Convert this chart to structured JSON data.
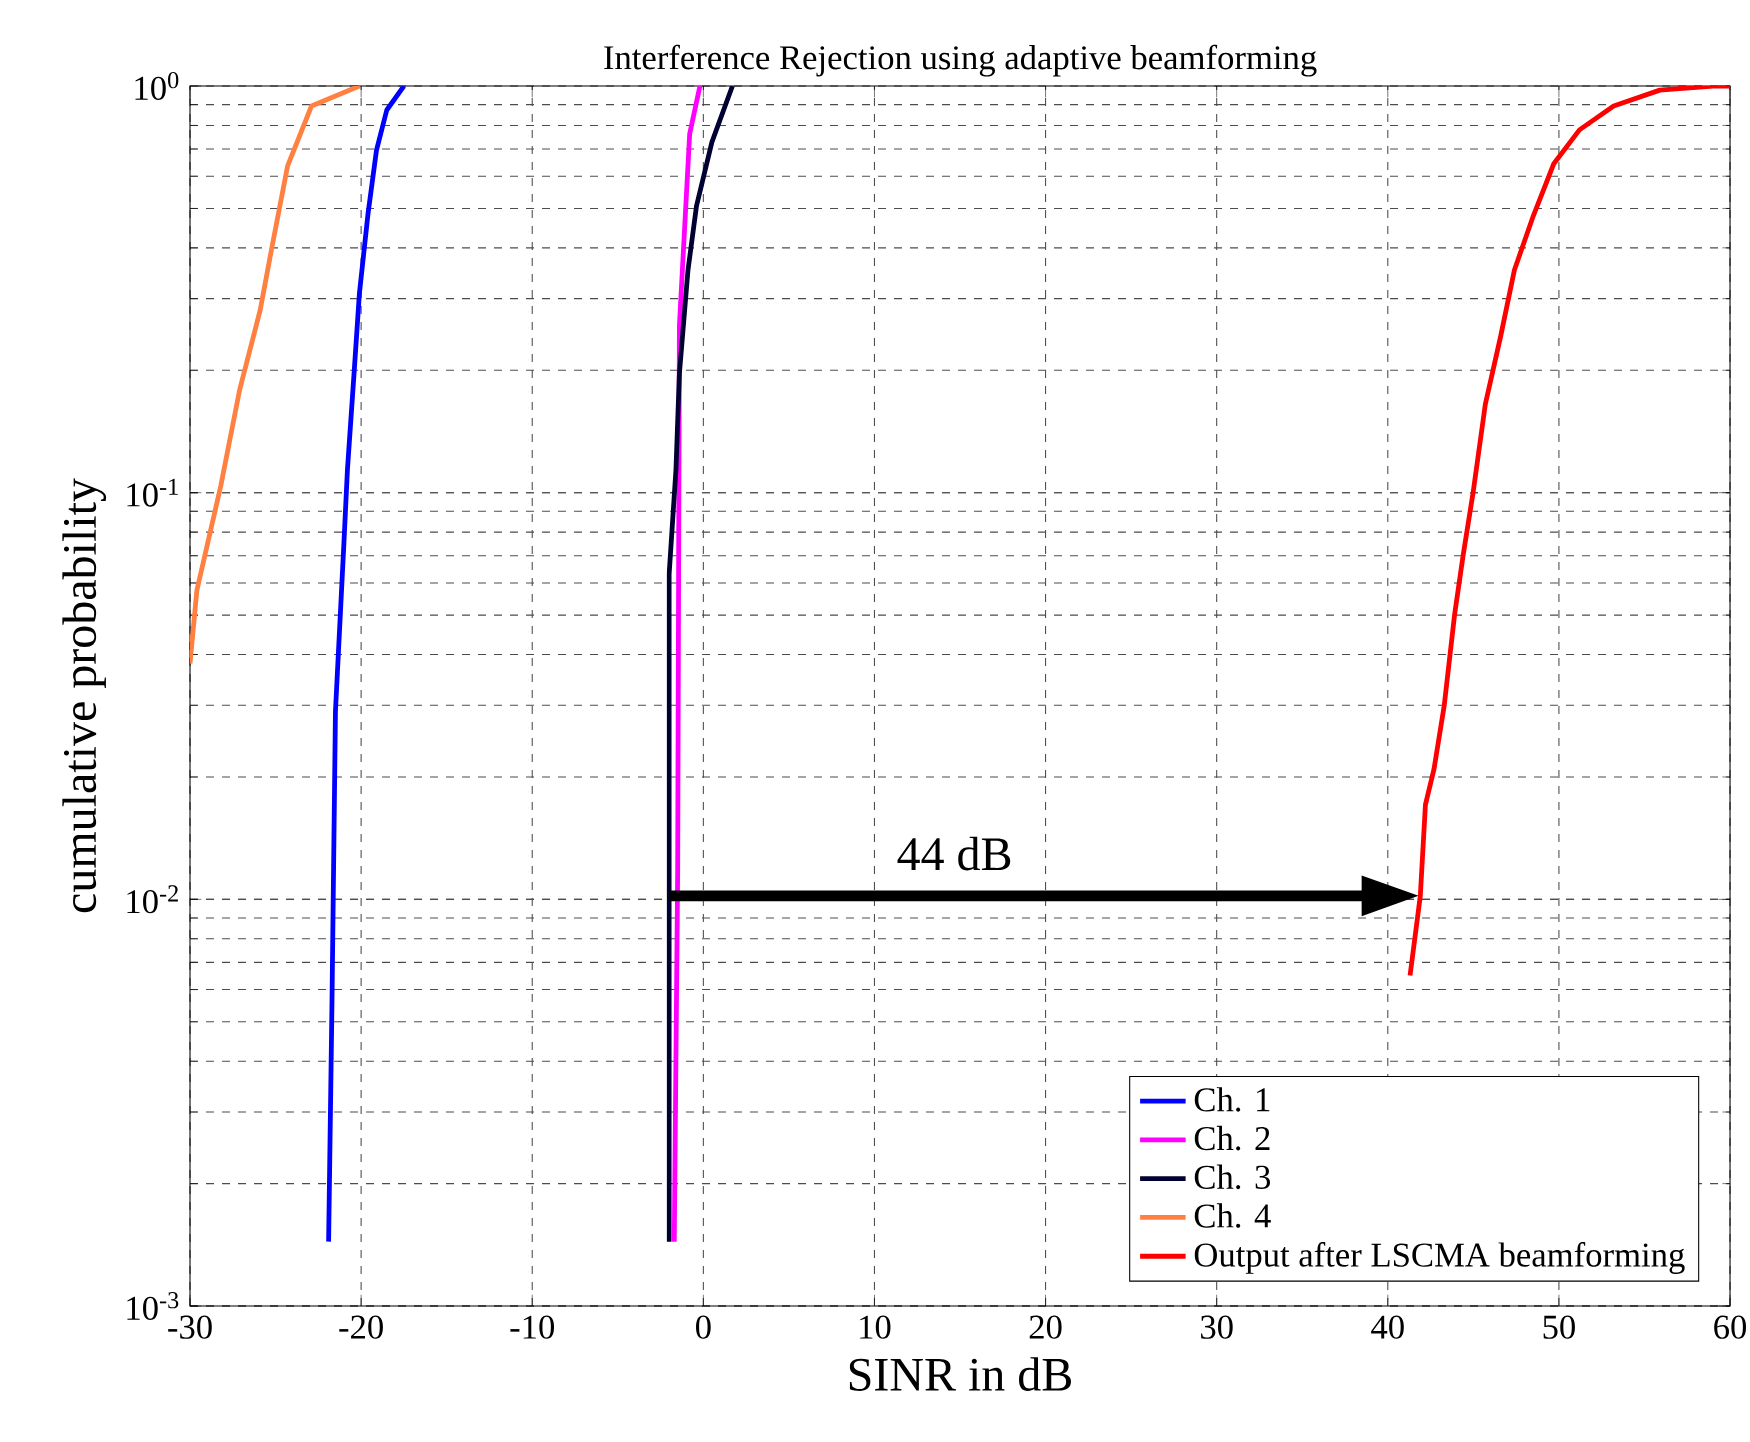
{
  "chart_data": {
    "type": "line",
    "title": "Interference Rejection using adaptive beamforming",
    "xlabel": "SINR in dB",
    "ylabel": "cumulative probability",
    "log": "y",
    "grid": true,
    "legend": "bottom right",
    "marker": "none",
    "line_style": "solid",
    "xlim": [
      -30,
      60
    ],
    "xticks": [
      -30,
      -20,
      -10,
      0,
      10,
      20,
      30,
      40,
      50,
      60
    ],
    "ylim": [
      0.001,
      1
    ],
    "yticks": [
      {
        "value": 0.001,
        "label": "10$^{-3}$"
      },
      {
        "value": 0.01,
        "label": "10$^{-2}$"
      },
      {
        "value": 0.1,
        "label": "10$^{-1}$"
      },
      {
        "value": 1,
        "label": "10$^{0}$"
      }
    ],
    "annotations": [
      "44 dB"
    ],
    "series": [
      {
        "name": "Ch. 1",
        "color": "#0000ff",
        "x": [
          -21.9,
          -21.7,
          -21.5,
          -21.0,
          -20.8,
          -20.4,
          -20.1,
          -19.6,
          -19.1,
          -18.5,
          -17.5
        ],
        "values": [
          0.00144,
          0.0057,
          0.029,
          0.076,
          0.114,
          0.2,
          0.309,
          0.484,
          0.696,
          0.873,
          1
        ]
      },
      {
        "name": "Ch. 2",
        "color": "#ff00ff",
        "x": [
          -1.7,
          -1.5,
          -1.4,
          -1.1,
          -0.8,
          -0.2
        ],
        "values": [
          0.00144,
          0.0118,
          0.257,
          0.443,
          0.762,
          1
        ]
      },
      {
        "name": "Ch. 3",
        "color": "#000033",
        "x": [
          -2.0,
          -2.0,
          -1.6,
          -1.4,
          -0.9,
          -0.4,
          0.5,
          1.7
        ],
        "values": [
          0.00144,
          0.063,
          0.114,
          0.196,
          0.352,
          0.507,
          0.728,
          1
        ]
      },
      {
        "name": "Ch. 4",
        "color": "#ff8040",
        "x": [
          -30,
          -29.6,
          -28.2,
          -27.1,
          -25.9,
          -25.2,
          -24.3,
          -22.9,
          -20.1
        ],
        "values": [
          0.038,
          0.0575,
          0.104,
          0.179,
          0.281,
          0.404,
          0.635,
          0.893,
          1
        ]
      },
      {
        "name": "Output after LSCMA beamforming",
        "color": "#ff0000",
        "x": [
          41.3,
          41.9,
          42.2,
          42.7,
          43.3,
          43.9,
          44.4,
          45.0,
          45.7,
          46.6,
          47.4,
          48.5,
          49.7,
          51.2,
          53.2,
          55.9,
          59,
          60
        ],
        "values": [
          0.0065,
          0.0102,
          0.0171,
          0.0209,
          0.03,
          0.05,
          0.07,
          0.101,
          0.165,
          0.243,
          0.353,
          0.479,
          0.644,
          0.78,
          0.893,
          0.977,
          1,
          1
        ]
      }
    ]
  }
}
